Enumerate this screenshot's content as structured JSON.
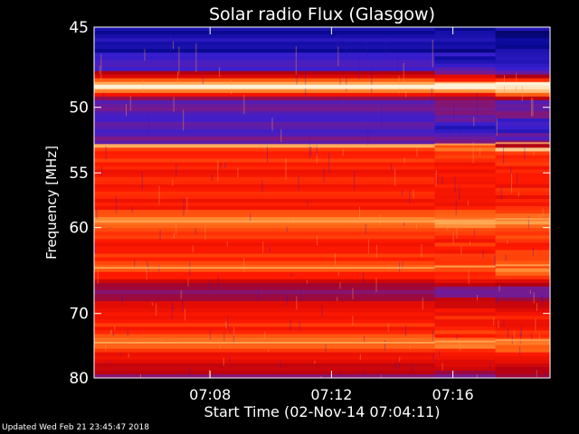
{
  "footer": {
    "updated": "Updated Wed Feb 21 23:45:47 2018"
  },
  "colors": {
    "background": "#000000",
    "text": "#ffffff",
    "colormap": [
      "#000030",
      "#0a0a9c",
      "#3b1fcf",
      "#7a1a8a",
      "#b00012",
      "#de0a05",
      "#ff1a00",
      "#ff5a10",
      "#ff9c40",
      "#ffe0b0",
      "#ffffff"
    ]
  },
  "chart_data": {
    "type": "heatmap",
    "title": "Solar radio Flux (Glasgow)",
    "xlabel": "Start Time (02-Nov-14 07:04:11)",
    "ylabel": "Frequency [MHz]",
    "x_tick_labels": [
      "07:08",
      "07:12",
      "07:16"
    ],
    "y_tick_labels": [
      "45",
      "50",
      "55",
      "60",
      "70",
      "80"
    ],
    "x_ticks_minutes": [
      8,
      12,
      16
    ],
    "y_ticks_mhz": [
      45,
      50,
      55,
      60,
      70,
      80
    ],
    "xlim_minutes": [
      4.18,
      19.2
    ],
    "ylim_mhz": [
      80,
      45
    ],
    "y_scale": "reciprocal",
    "grid": false,
    "time_segments": [
      {
        "start_min": 4.18,
        "end_min": 15.4,
        "offset": 0.0
      },
      {
        "start_min": 15.4,
        "end_min": 17.4,
        "offset": 0.35
      },
      {
        "start_min": 17.4,
        "end_min": 19.2,
        "offset": 0.7
      }
    ],
    "intensity_profile": [
      {
        "mhz": 45.0,
        "level": 0.12
      },
      {
        "mhz": 46.0,
        "level": 0.1
      },
      {
        "mhz": 47.5,
        "level": 0.22
      },
      {
        "mhz": 48.6,
        "level": 0.98
      },
      {
        "mhz": 49.4,
        "level": 0.3
      },
      {
        "mhz": 51.5,
        "level": 0.2
      },
      {
        "mhz": 52.6,
        "level": 0.3
      },
      {
        "mhz": 52.8,
        "level": 0.88
      },
      {
        "mhz": 53.2,
        "level": 0.62
      },
      {
        "mhz": 55.0,
        "level": 0.58
      },
      {
        "mhz": 58.0,
        "level": 0.6
      },
      {
        "mhz": 59.4,
        "level": 0.78
      },
      {
        "mhz": 61.0,
        "level": 0.6
      },
      {
        "mhz": 63.0,
        "level": 0.64
      },
      {
        "mhz": 64.3,
        "level": 0.74
      },
      {
        "mhz": 65.5,
        "level": 0.55
      },
      {
        "mhz": 66.5,
        "level": 0.33
      },
      {
        "mhz": 67.5,
        "level": 0.3
      },
      {
        "mhz": 68.5,
        "level": 0.5
      },
      {
        "mhz": 70.5,
        "level": 0.58
      },
      {
        "mhz": 73.0,
        "level": 0.62
      },
      {
        "mhz": 74.2,
        "level": 0.78
      },
      {
        "mhz": 76.0,
        "level": 0.55
      },
      {
        "mhz": 78.0,
        "level": 0.46
      },
      {
        "mhz": 79.2,
        "level": 0.36
      },
      {
        "mhz": 80.0,
        "level": 0.3
      }
    ],
    "bright_lines_mhz": [
      48.6,
      52.8,
      59.4,
      64.3,
      74.2
    ],
    "blue_bands_mhz": [
      [
        45.0,
        51.8
      ],
      [
        66.2,
        68.0
      ],
      [
        78.8,
        80.0
      ]
    ]
  }
}
